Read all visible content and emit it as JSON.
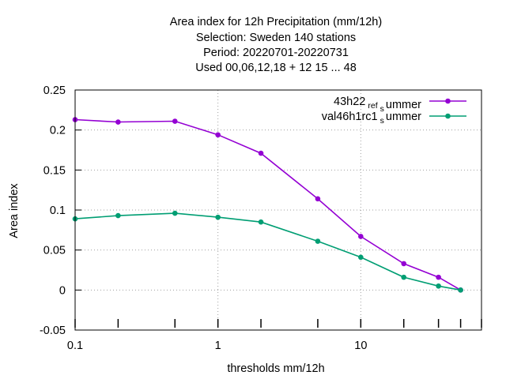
{
  "chart_data": {
    "type": "line",
    "title_lines": [
      "Area index  for 12h Precipitation (mm/12h)",
      "Selection: Sweden    140 stations",
      "Period: 20220701-20220731",
      "Used  00,06,12,18  + 12 15 ... 48"
    ],
    "xlabel": "thresholds mm/12h",
    "ylabel": "Area index",
    "x_scale": "log",
    "xlim": [
      0.1,
      70
    ],
    "ylim": [
      -0.05,
      0.25
    ],
    "x_ticks": [
      0.1,
      1,
      10
    ],
    "x_tick_labels": [
      "0.1",
      "1",
      "10"
    ],
    "y_ticks": [
      -0.05,
      0,
      0.05,
      0.1,
      0.15,
      0.2,
      0.25
    ],
    "y_tick_labels": [
      "-0.05",
      "0",
      "0.05",
      "0.1",
      "0.15",
      "0.2",
      "0.25"
    ],
    "grid": true,
    "legend_position": "top-right",
    "series": [
      {
        "legend_parts": [
          "43h22",
          "ref",
          "s",
          "ummer"
        ],
        "color": "#9400d3",
        "x": [
          0.1,
          0.2,
          0.5,
          1,
          2,
          5,
          10,
          20,
          35,
          50
        ],
        "y": [
          0.213,
          0.21,
          0.211,
          0.194,
          0.171,
          0.114,
          0.067,
          0.033,
          0.016,
          0.0
        ]
      },
      {
        "legend_parts": [
          "val46h1rc1",
          "",
          "s",
          "ummer"
        ],
        "color": "#009e73",
        "x": [
          0.1,
          0.2,
          0.5,
          1,
          2,
          5,
          10,
          20,
          35,
          50
        ],
        "y": [
          0.089,
          0.093,
          0.096,
          0.091,
          0.085,
          0.061,
          0.041,
          0.016,
          0.005,
          0.0
        ]
      }
    ]
  }
}
